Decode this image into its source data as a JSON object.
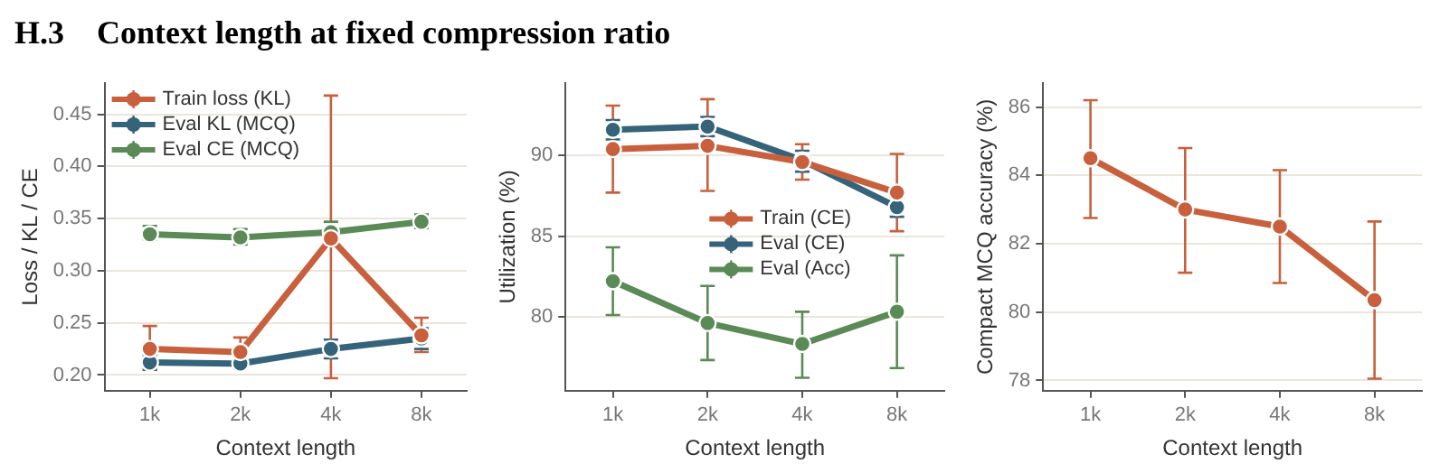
{
  "chart_data": [
    {
      "type": "line",
      "title": "H.3    Context length at fixed compression ratio",
      "xlabel": "Context length",
      "ylabel": "Loss / KL / CE",
      "categories": [
        "1k",
        "2k",
        "4k",
        "8k"
      ],
      "ylim": [
        0.185,
        0.48
      ],
      "yticks": [
        {
          "value": 0.2,
          "label": "0.20"
        },
        {
          "value": 0.25,
          "label": "0.25"
        },
        {
          "value": 0.3,
          "label": "0.30"
        },
        {
          "value": 0.35,
          "label": "0.35"
        },
        {
          "value": 0.4,
          "label": "0.40"
        },
        {
          "value": 0.45,
          "label": "0.45"
        }
      ],
      "grid": "y",
      "legend": "top left",
      "marker": "circle",
      "series": [
        {
          "name": "Train loss (KL)",
          "color": "#c8603d",
          "values": [
            0.225,
            0.222,
            0.331,
            0.238
          ],
          "errors": [
            [
              0.206,
              0.247
            ],
            [
              0.215,
              0.236
            ],
            [
              0.197,
              0.468
            ],
            [
              0.222,
              0.255
            ]
          ]
        },
        {
          "name": "Eval KL (MCQ)",
          "color": "#35637a",
          "values": [
            0.212,
            0.211,
            0.225,
            0.235
          ],
          "errors": [
            [
              0.205,
              0.219
            ],
            [
              0.208,
              0.214
            ],
            [
              0.216,
              0.234
            ],
            [
              0.225,
              0.245
            ]
          ]
        },
        {
          "name": "Eval CE (MCQ)",
          "color": "#5a8a55",
          "values": [
            0.335,
            0.332,
            0.337,
            0.347
          ],
          "errors": [
            [
              0.33,
              0.343
            ],
            [
              0.325,
              0.34
            ],
            [
              0.33,
              0.347
            ],
            [
              0.341,
              0.354
            ]
          ]
        }
      ]
    },
    {
      "type": "line",
      "xlabel": "Context length",
      "ylabel": "Utilization (%)",
      "categories": [
        "1k",
        "2k",
        "4k",
        "8k"
      ],
      "ylim": [
        75.4,
        94.5
      ],
      "yticks": [
        80,
        85,
        90
      ],
      "grid": "y",
      "legend": "center",
      "marker": "circle",
      "series": [
        {
          "name": "Train (CE)",
          "color": "#c8603d",
          "values": [
            90.4,
            90.6,
            89.6,
            87.7
          ],
          "errors": [
            [
              87.7,
              93.1
            ],
            [
              87.8,
              93.5
            ],
            [
              88.5,
              90.7
            ],
            [
              85.3,
              90.1
            ]
          ]
        },
        {
          "name": "Eval (CE)",
          "color": "#35637a",
          "values": [
            91.6,
            91.8,
            89.7,
            86.8
          ],
          "errors": [
            [
              91.0,
              92.2
            ],
            [
              91.2,
              92.4
            ],
            [
              89.0,
              90.3
            ],
            [
              86.2,
              87.4
            ]
          ]
        },
        {
          "name": "Eval (Acc)",
          "color": "#5a8a55",
          "values": [
            82.2,
            79.6,
            78.3,
            80.3
          ],
          "errors": [
            [
              80.1,
              84.3
            ],
            [
              77.3,
              81.9
            ],
            [
              76.2,
              80.3
            ],
            [
              76.8,
              83.8
            ]
          ]
        }
      ]
    },
    {
      "type": "line",
      "xlabel": "Context length",
      "ylabel": "Compact MCQ accuracy (%)",
      "categories": [
        "1k",
        "2k",
        "4k",
        "8k"
      ],
      "ylim": [
        77.7,
        86.7
      ],
      "yticks": [
        78,
        80,
        82,
        84,
        86
      ],
      "grid": "y",
      "legend": false,
      "marker": "circle",
      "series": [
        {
          "color": "#c8603d",
          "values": [
            84.5,
            83.0,
            82.5,
            80.35
          ],
          "errors": [
            [
              82.75,
              86.2
            ],
            [
              81.15,
              84.8
            ],
            [
              80.85,
              84.15
            ],
            [
              78.05,
              82.65
            ]
          ]
        }
      ]
    }
  ]
}
